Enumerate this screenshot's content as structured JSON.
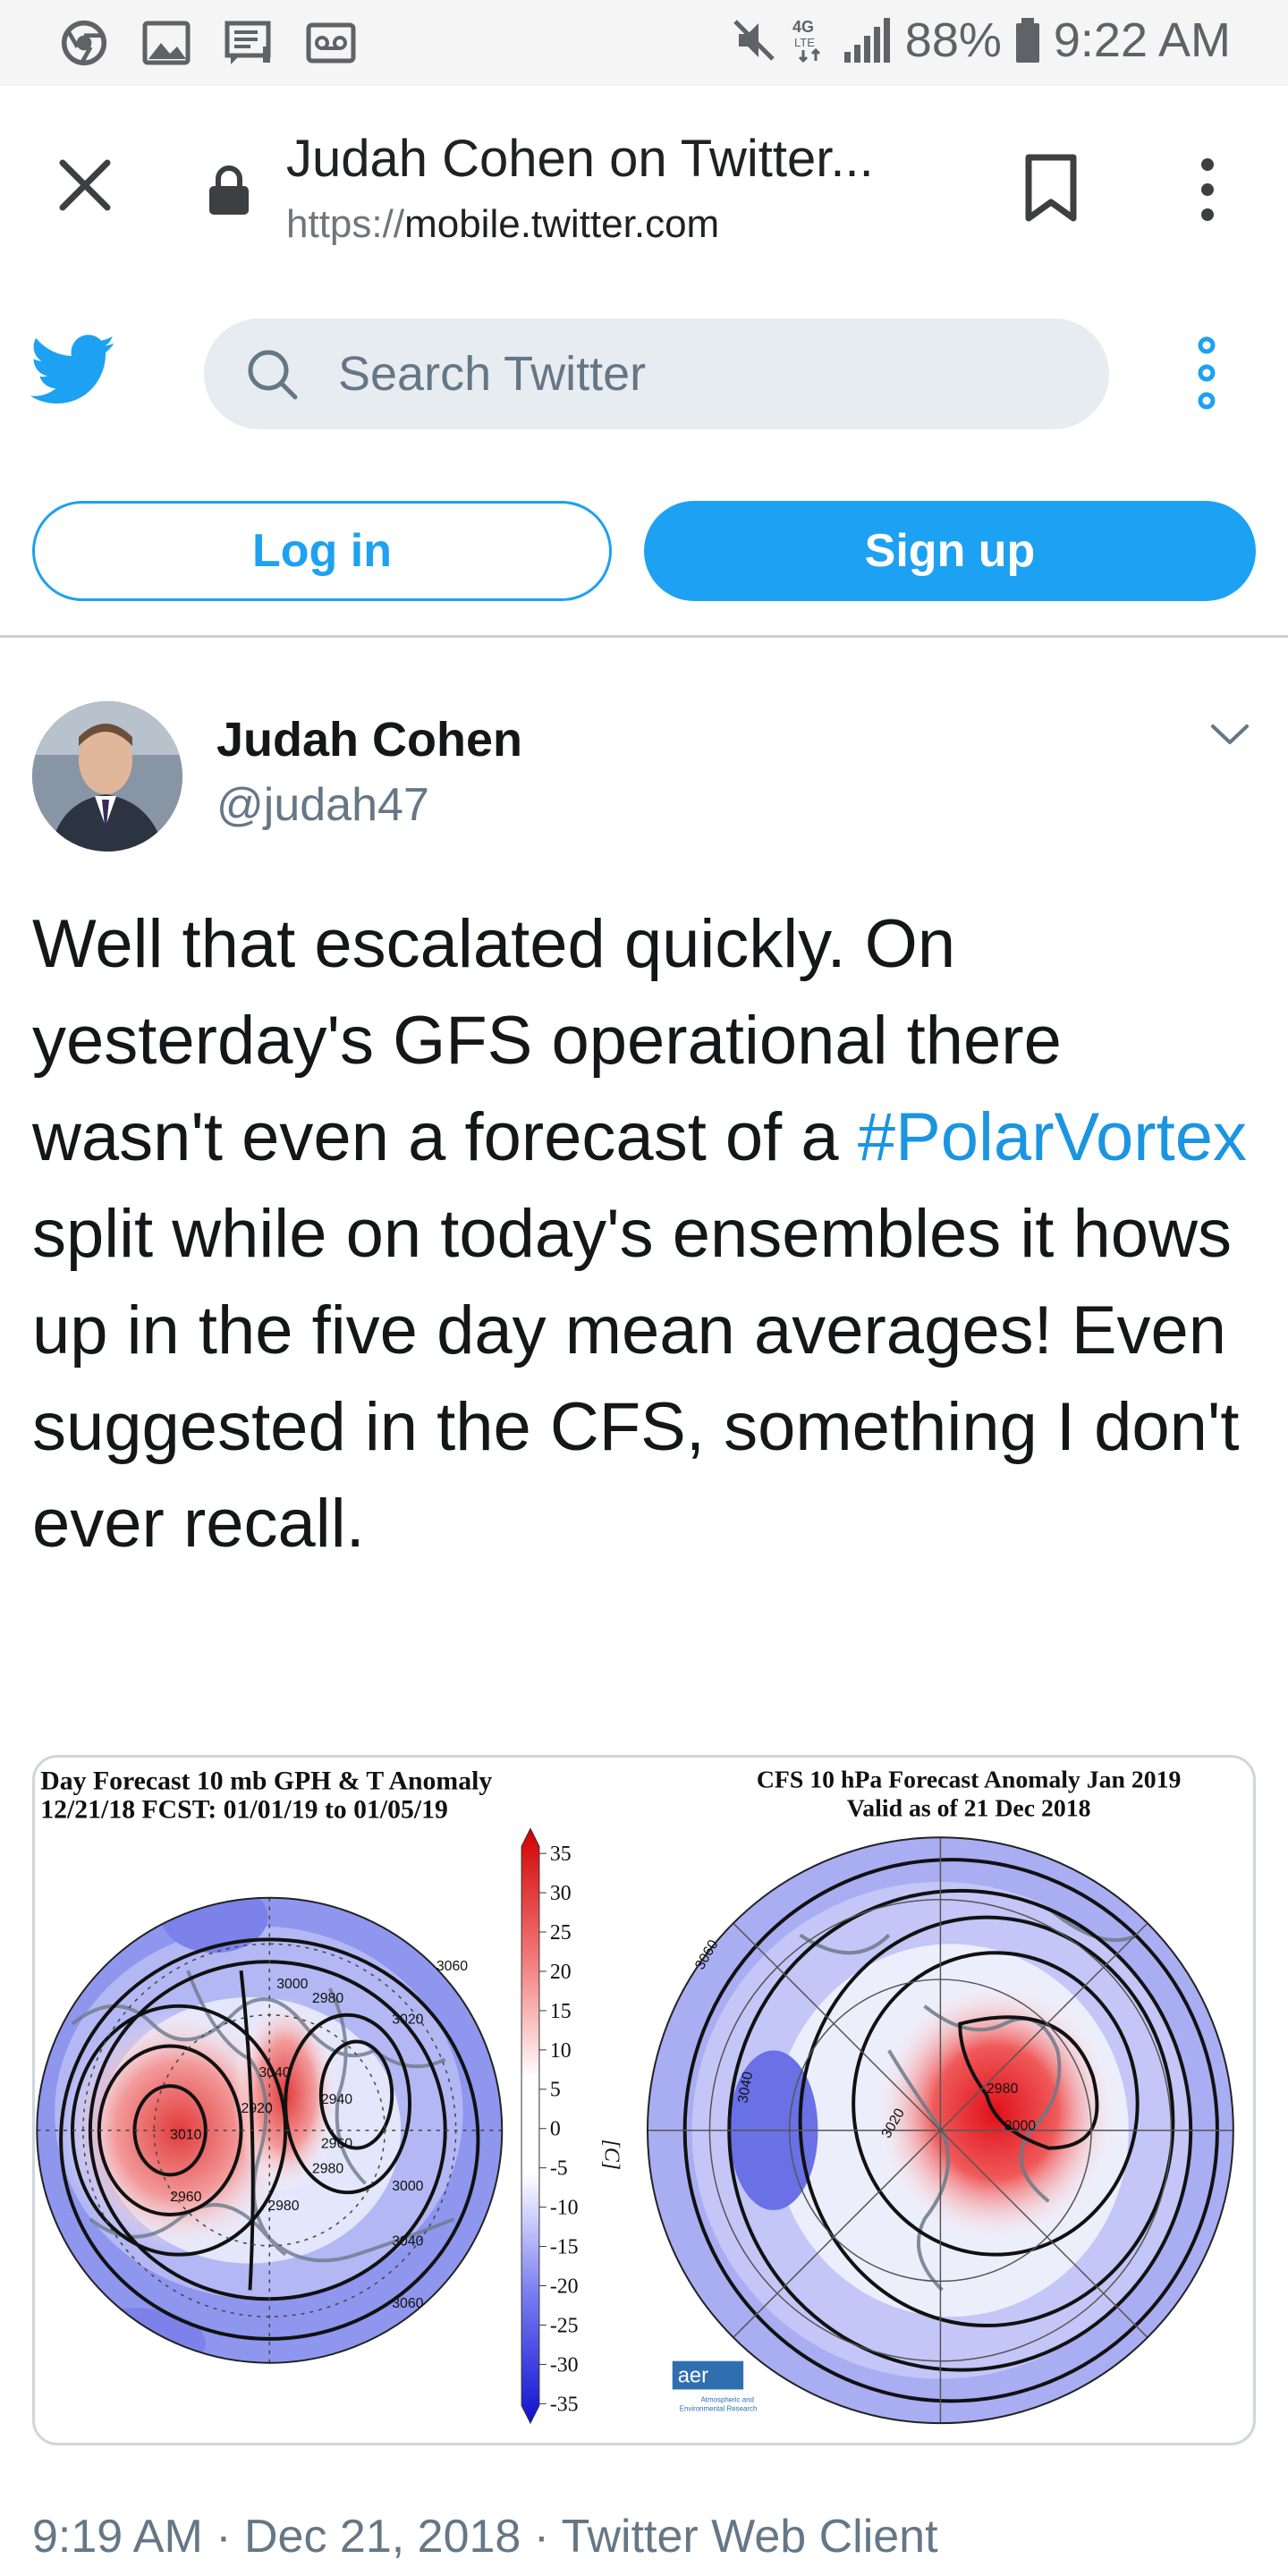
{
  "status_bar": {
    "battery": "88%",
    "time": "9:22 AM",
    "network": "4G LTE",
    "icons": [
      "chrome-icon",
      "image-icon",
      "message-icon",
      "voicemail-icon",
      "mute-icon",
      "signal-icon",
      "battery-icon"
    ]
  },
  "browser": {
    "title": "Judah Cohen on Twitter...",
    "url_scheme": "https://",
    "url_host": "mobile.twitter.com",
    "icons": [
      "close-icon",
      "lock-icon",
      "bookmark-icon",
      "more-vert-icon"
    ]
  },
  "twitter": {
    "search_placeholder": "Search Twitter",
    "login_label": "Log in",
    "signup_label": "Sign up",
    "brand_color": "#1da1f2"
  },
  "tweet": {
    "author_name": "Judah Cohen",
    "author_handle": "@judah47",
    "text_part1": "Well that escalated quickly. On yesterday's GFS operational there wasn't even a forecast of a ",
    "hashtag": "#PolarVortex",
    "text_part2": " split while on today's ensembles it hows up in the five day mean averages! Even suggested in the CFS, something I don't ever recall.",
    "meta": "9:19 AM · Dec 21, 2018 · Twitter Web Client"
  },
  "media": {
    "left_title_line1": "Day Forecast 10 mb GPH & T Anomaly",
    "left_title_line2": "12/21/18   FCST: 01/01/19 to 01/05/19",
    "right_title_line1": "CFS 10 hPa Forecast Anomaly Jan 2019",
    "right_title_line2": "Valid as of 21 Dec 2018",
    "colorbar_ticks": [
      "35",
      "30",
      "25",
      "20",
      "15",
      "10",
      "5",
      "0",
      "-5",
      "-10",
      "-15",
      "-20",
      "-25",
      "-30",
      "-35"
    ],
    "colorbar_unit": "[C]",
    "left_contours": [
      "3000",
      "2980",
      "3020",
      "3060",
      "2940",
      "2960",
      "2980",
      "3000",
      "3040",
      "3060",
      "3010",
      "2960",
      "2920",
      "2980",
      "3040"
    ],
    "right_contours": [
      "3060",
      "3040",
      "3020",
      "2980",
      "3000"
    ],
    "aer_logo": "aer",
    "aer_caption_1": "Atmospheric and",
    "aer_caption_2": "Environmental Research"
  }
}
